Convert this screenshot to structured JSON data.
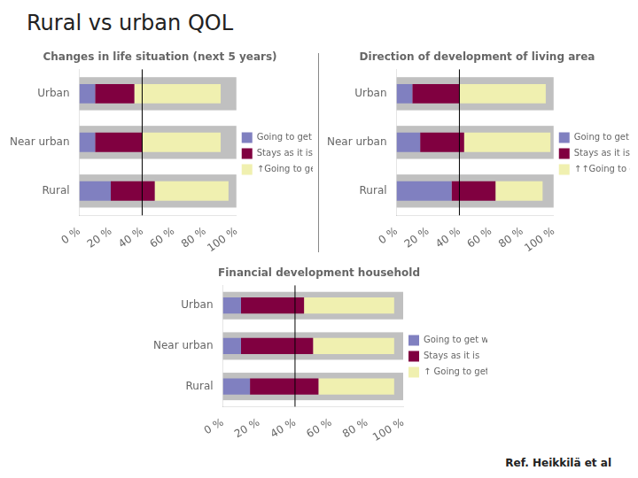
{
  "title": "Rural vs urban QOL",
  "annotations": [
    "Ref. Heikkilä et al"
  ],
  "chart_data": [
    {
      "type": "bar",
      "orientation": "horizontal",
      "stacked": true,
      "title": "Changes in life situation (next 5 years)",
      "categories": [
        "Urban",
        "Near urban",
        "Rural"
      ],
      "series": [
        {
          "name": "Going to get worse",
          "color": "#8080c0",
          "values": [
            10,
            10,
            20
          ]
        },
        {
          "name": "Stays as it is",
          "color": "#800040",
          "values": [
            25,
            30,
            28
          ]
        },
        {
          "name": "↑Going to get better",
          "color": "#f0f0b0",
          "values": [
            55,
            50,
            47
          ]
        }
      ],
      "xlim": [
        0,
        100
      ],
      "xticks": [
        {
          "value": 0,
          "label": "0 %"
        },
        {
          "value": 20,
          "label": "20 %"
        },
        {
          "value": 40,
          "label": "40 %"
        },
        {
          "value": 60,
          "label": "60 %"
        },
        {
          "value": 80,
          "label": "80 %"
        },
        {
          "value": 100,
          "label": "100 %"
        }
      ],
      "reference_line": 40,
      "grid": false,
      "legend": "right"
    },
    {
      "type": "bar",
      "orientation": "horizontal",
      "stacked": true,
      "title": "Direction of development of living area",
      "categories": [
        "Urban",
        "Near urban",
        "Rural"
      ],
      "series": [
        {
          "name": "Going to get worse",
          "color": "#8080c0",
          "values": [
            10,
            15,
            35
          ]
        },
        {
          "name": "Stays as it is",
          "color": "#800040",
          "values": [
            30,
            28,
            28
          ]
        },
        {
          "name": "↑↑Going to get better",
          "color": "#f0f0b0",
          "values": [
            55,
            55,
            30
          ]
        }
      ],
      "xlim": [
        0,
        100
      ],
      "xticks": [
        {
          "value": 0,
          "label": "0 %"
        },
        {
          "value": 20,
          "label": "20 %"
        },
        {
          "value": 40,
          "label": "40 %"
        },
        {
          "value": 60,
          "label": "60 %"
        },
        {
          "value": 80,
          "label": "80 %"
        },
        {
          "value": 100,
          "label": "100 %"
        }
      ],
      "reference_line": 40,
      "grid": false,
      "legend": "right"
    },
    {
      "type": "bar",
      "orientation": "horizontal",
      "stacked": true,
      "title": "Financial development household",
      "categories": [
        "Urban",
        "Near urban",
        "Rural"
      ],
      "series": [
        {
          "name": "Going to get worse",
          "color": "#8080c0",
          "values": [
            10,
            10,
            15
          ]
        },
        {
          "name": "Stays as it is",
          "color": "#800040",
          "values": [
            35,
            40,
            38
          ]
        },
        {
          "name": "↑ Going to get better",
          "color": "#f0f0b0",
          "values": [
            50,
            45,
            42
          ]
        }
      ],
      "xlim": [
        0,
        100
      ],
      "xticks": [
        {
          "value": 0,
          "label": "0 %"
        },
        {
          "value": 20,
          "label": "20 %"
        },
        {
          "value": 40,
          "label": "40 %"
        },
        {
          "value": 60,
          "label": "60 %"
        },
        {
          "value": 80,
          "label": "80 %"
        },
        {
          "value": 100,
          "label": "100 %"
        }
      ],
      "reference_line": 40,
      "grid": false,
      "legend": "right"
    }
  ]
}
